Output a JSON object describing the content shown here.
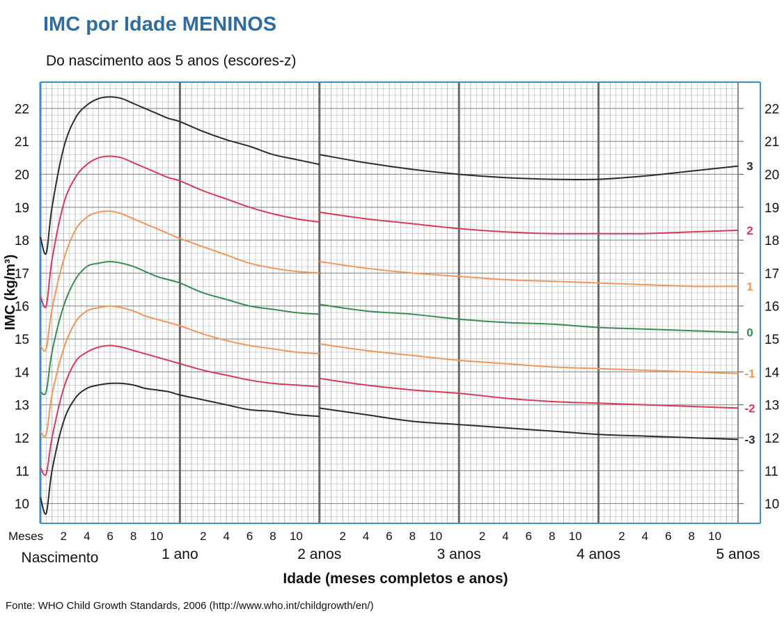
{
  "chart_data": {
    "type": "line",
    "title": "IMC por Idade MENINOS",
    "subtitle": "Do nascimento aos 5 anos (escores-z)",
    "ylabel": "IMC (kg/m³)",
    "xlabel": "Idade (meses completos e anos)",
    "source": "Fonte: WHO Child Growth Standards, 2006 (http://www.who.int/childgrowth/en/)",
    "x_units": "months",
    "xlim": [
      0,
      60
    ],
    "ylim": [
      9.4,
      22.8
    ],
    "y_ticks": [
      10,
      11,
      12,
      13,
      14,
      15,
      16,
      17,
      18,
      19,
      20,
      21,
      22
    ],
    "meses_label": "Meses",
    "month_ticks": [
      "2",
      "4",
      "6",
      "8",
      "10"
    ],
    "year_labels": [
      "Nascimento",
      "1 ano",
      "2 anos",
      "3 anos",
      "4 anos",
      "5 anos"
    ],
    "grid": true,
    "colors": {
      "black": "#2b2b2b",
      "red": "#d63a5a",
      "orange": "#f0965a",
      "green": "#3a8a55",
      "frame": "#3a8fc4",
      "title": "#2f6c9f",
      "grid": "#b9b9b9",
      "year_line": "#666666"
    },
    "series": [
      {
        "name": "3",
        "color": "black",
        "segment1": {
          "x": [
            0,
            0.5,
            1,
            2,
            3,
            4,
            5,
            6,
            7,
            8,
            9,
            10,
            11,
            12,
            14,
            16,
            18,
            20,
            22,
            24
          ],
          "y": [
            18.1,
            17.6,
            19.0,
            20.8,
            21.7,
            22.1,
            22.3,
            22.35,
            22.3,
            22.15,
            22.0,
            21.85,
            21.7,
            21.6,
            21.3,
            21.05,
            20.85,
            20.6,
            20.45,
            20.3
          ]
        },
        "segment2": {
          "x": [
            24,
            28,
            32,
            36,
            40,
            44,
            48,
            52,
            56,
            60
          ],
          "y": [
            20.6,
            20.35,
            20.15,
            20.0,
            19.9,
            19.85,
            19.85,
            19.95,
            20.1,
            20.25
          ]
        }
      },
      {
        "name": "2",
        "color": "red",
        "segment1": {
          "x": [
            0,
            0.5,
            1,
            2,
            3,
            4,
            5,
            6,
            7,
            8,
            9,
            10,
            11,
            12,
            14,
            16,
            18,
            20,
            22,
            24
          ],
          "y": [
            16.3,
            16.0,
            17.4,
            19.1,
            19.9,
            20.3,
            20.5,
            20.55,
            20.5,
            20.35,
            20.2,
            20.05,
            19.9,
            19.8,
            19.5,
            19.25,
            19.0,
            18.8,
            18.65,
            18.55
          ]
        },
        "segment2": {
          "x": [
            24,
            28,
            32,
            36,
            40,
            44,
            48,
            52,
            56,
            60
          ],
          "y": [
            18.85,
            18.65,
            18.5,
            18.35,
            18.25,
            18.2,
            18.2,
            18.2,
            18.25,
            18.3
          ]
        }
      },
      {
        "name": "1",
        "color": "orange",
        "segment1": {
          "x": [
            0,
            0.5,
            1,
            2,
            3,
            4,
            5,
            6,
            7,
            8,
            9,
            10,
            11,
            12,
            14,
            16,
            18,
            20,
            22,
            24
          ],
          "y": [
            14.8,
            14.7,
            15.9,
            17.4,
            18.3,
            18.7,
            18.85,
            18.88,
            18.8,
            18.65,
            18.5,
            18.35,
            18.2,
            18.05,
            17.8,
            17.55,
            17.3,
            17.15,
            17.05,
            17.0
          ]
        },
        "segment2": {
          "x": [
            24,
            28,
            32,
            36,
            40,
            44,
            48,
            52,
            56,
            60
          ],
          "y": [
            17.35,
            17.15,
            17.0,
            16.9,
            16.8,
            16.75,
            16.7,
            16.65,
            16.6,
            16.6
          ]
        }
      },
      {
        "name": "0",
        "color": "green",
        "segment1": {
          "x": [
            0,
            0.5,
            1,
            2,
            3,
            4,
            5,
            6,
            7,
            8,
            9,
            10,
            11,
            12,
            14,
            16,
            18,
            20,
            22,
            24
          ],
          "y": [
            13.4,
            13.4,
            14.6,
            16.0,
            16.8,
            17.2,
            17.3,
            17.35,
            17.3,
            17.2,
            17.05,
            16.9,
            16.8,
            16.7,
            16.4,
            16.2,
            16.0,
            15.9,
            15.8,
            15.75
          ]
        },
        "segment2": {
          "x": [
            24,
            28,
            32,
            36,
            40,
            44,
            48,
            52,
            56,
            60
          ],
          "y": [
            16.05,
            15.85,
            15.75,
            15.6,
            15.5,
            15.45,
            15.35,
            15.3,
            15.25,
            15.2
          ]
        }
      },
      {
        "name": "-1",
        "color": "orange",
        "segment1": {
          "x": [
            0,
            0.5,
            1,
            2,
            3,
            4,
            5,
            6,
            7,
            8,
            9,
            10,
            11,
            12,
            14,
            16,
            18,
            20,
            22,
            24
          ],
          "y": [
            12.2,
            12.1,
            13.3,
            14.7,
            15.5,
            15.85,
            15.95,
            16.0,
            15.95,
            15.85,
            15.7,
            15.6,
            15.5,
            15.4,
            15.15,
            14.95,
            14.8,
            14.7,
            14.6,
            14.55
          ]
        },
        "segment2": {
          "x": [
            24,
            28,
            32,
            36,
            40,
            44,
            48,
            52,
            56,
            60
          ],
          "y": [
            14.85,
            14.65,
            14.5,
            14.35,
            14.25,
            14.15,
            14.1,
            14.05,
            14.0,
            13.95
          ]
        }
      },
      {
        "name": "-2",
        "color": "red",
        "segment1": {
          "x": [
            0,
            0.5,
            1,
            2,
            3,
            4,
            5,
            6,
            7,
            8,
            9,
            10,
            11,
            12,
            14,
            16,
            18,
            20,
            22,
            24
          ],
          "y": [
            11.1,
            10.9,
            12.0,
            13.5,
            14.3,
            14.6,
            14.75,
            14.8,
            14.75,
            14.65,
            14.55,
            14.45,
            14.35,
            14.25,
            14.05,
            13.9,
            13.75,
            13.65,
            13.6,
            13.55
          ]
        },
        "segment2": {
          "x": [
            24,
            28,
            32,
            36,
            40,
            44,
            48,
            52,
            56,
            60
          ],
          "y": [
            13.8,
            13.6,
            13.45,
            13.35,
            13.2,
            13.1,
            13.05,
            13.0,
            12.95,
            12.9
          ]
        }
      },
      {
        "name": "-3",
        "color": "black",
        "segment1": {
          "x": [
            0,
            0.5,
            1,
            2,
            3,
            4,
            5,
            6,
            7,
            8,
            9,
            10,
            11,
            12,
            14,
            16,
            18,
            20,
            22,
            24
          ],
          "y": [
            10.2,
            9.7,
            11.0,
            12.5,
            13.2,
            13.5,
            13.6,
            13.65,
            13.65,
            13.6,
            13.5,
            13.45,
            13.4,
            13.3,
            13.15,
            13.0,
            12.85,
            12.8,
            12.7,
            12.65
          ]
        },
        "segment2": {
          "x": [
            24,
            28,
            32,
            36,
            40,
            44,
            48,
            52,
            56,
            60
          ],
          "y": [
            12.9,
            12.7,
            12.5,
            12.4,
            12.3,
            12.2,
            12.1,
            12.05,
            12.0,
            11.95
          ]
        }
      }
    ]
  }
}
